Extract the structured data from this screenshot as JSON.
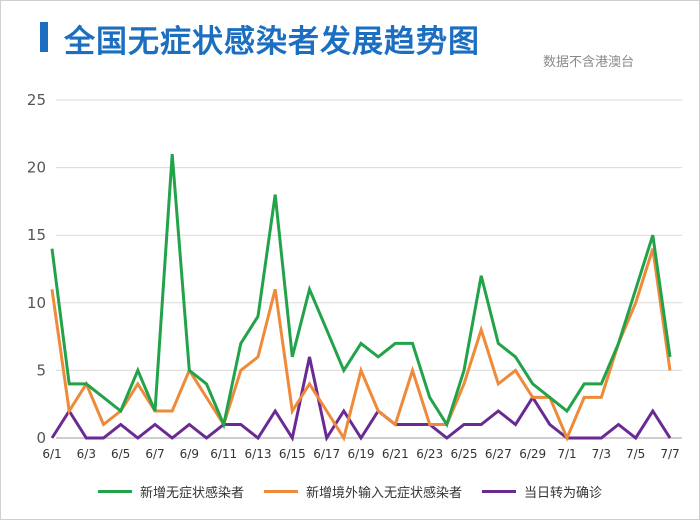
{
  "header": {
    "title": "全国无症状感染者发展趋势图",
    "subtitle": "数据不含港澳台"
  },
  "colors": {
    "accent": "#1c6fc0",
    "grid": "#d9d9d9",
    "axis": "#bdbdbd"
  },
  "chart_data": {
    "type": "line",
    "title": "全国无症状感染者发展趋势图",
    "xlabel": "",
    "ylabel": "",
    "ylim": [
      0,
      25
    ],
    "yticks": [
      0,
      5,
      10,
      15,
      20,
      25
    ],
    "grid": true,
    "legend_position": "bottom",
    "x": [
      "6/1",
      "6/2",
      "6/3",
      "6/4",
      "6/5",
      "6/6",
      "6/7",
      "6/8",
      "6/9",
      "6/10",
      "6/11",
      "6/12",
      "6/13",
      "6/14",
      "6/15",
      "6/16",
      "6/17",
      "6/18",
      "6/19",
      "6/20",
      "6/21",
      "6/22",
      "6/23",
      "6/24",
      "6/25",
      "6/26",
      "6/27",
      "6/28",
      "6/29",
      "6/30",
      "7/1",
      "7/2",
      "7/3",
      "7/4",
      "7/5",
      "7/6",
      "7/7"
    ],
    "x_tick_labels": [
      "6/1",
      "6/3",
      "6/5",
      "6/7",
      "6/9",
      "6/11",
      "6/13",
      "6/15",
      "6/17",
      "6/19",
      "6/21",
      "6/23",
      "6/25",
      "6/27",
      "6/29",
      "7/1",
      "7/3",
      "7/5",
      "7/7"
    ],
    "series": [
      {
        "name": "新增无症状感染者",
        "color": "#22a34a",
        "values": [
          14,
          4,
          4,
          3,
          2,
          5,
          2,
          21,
          5,
          4,
          1,
          7,
          9,
          18,
          6,
          11,
          8,
          5,
          7,
          6,
          7,
          7,
          3,
          1,
          5,
          12,
          7,
          6,
          4,
          3,
          2,
          4,
          4,
          7,
          11,
          15,
          6
        ]
      },
      {
        "name": "新增境外输入无症状感染者",
        "color": "#ee8a3a",
        "values": [
          11,
          2,
          4,
          1,
          2,
          4,
          2,
          2,
          5,
          3,
          1,
          5,
          6,
          11,
          2,
          4,
          2,
          0,
          5,
          2,
          1,
          5,
          1,
          1,
          4,
          8,
          4,
          5,
          3,
          3,
          0,
          3,
          3,
          7,
          10,
          14,
          5
        ]
      },
      {
        "name": "当日转为确诊",
        "color": "#6a2a93",
        "values": [
          0,
          2,
          0,
          0,
          1,
          0,
          1,
          0,
          1,
          0,
          1,
          1,
          0,
          2,
          0,
          6,
          0,
          2,
          0,
          2,
          1,
          1,
          1,
          0,
          1,
          1,
          2,
          1,
          3,
          1,
          0,
          0,
          0,
          1,
          0,
          2,
          0
        ]
      }
    ]
  }
}
